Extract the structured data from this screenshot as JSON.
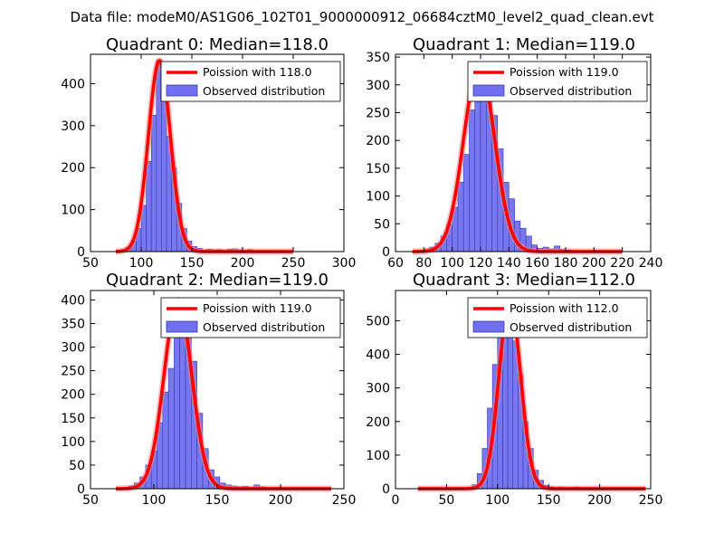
{
  "figure": {
    "suptitle": "Data file: modeM0/AS1G06_102T01_9000000912_06684cztM0_level2_quad_clean.evt"
  },
  "colors": {
    "bar_fill": "#7070f0",
    "bar_edge": "#3a3aa8",
    "curve": "#ff0000",
    "curve_glow": "#f08080"
  },
  "chart_data": [
    {
      "type": "bar",
      "title": "Quadrant 0: Median=118.0",
      "median": 118.0,
      "xlim": [
        50,
        300
      ],
      "ylim": [
        0,
        470
      ],
      "xticks": [
        50,
        100,
        150,
        200,
        250,
        300
      ],
      "yticks": [
        0,
        100,
        200,
        300,
        400
      ],
      "bin_width": 5,
      "bins": [
        {
          "x": 75,
          "h": 1
        },
        {
          "x": 80,
          "h": 4
        },
        {
          "x": 85,
          "h": 10
        },
        {
          "x": 90,
          "h": 25
        },
        {
          "x": 95,
          "h": 55
        },
        {
          "x": 100,
          "h": 110
        },
        {
          "x": 105,
          "h": 215
        },
        {
          "x": 110,
          "h": 325
        },
        {
          "x": 115,
          "h": 455
        },
        {
          "x": 120,
          "h": 365
        },
        {
          "x": 125,
          "h": 275
        },
        {
          "x": 130,
          "h": 200
        },
        {
          "x": 135,
          "h": 115
        },
        {
          "x": 140,
          "h": 55
        },
        {
          "x": 145,
          "h": 25
        },
        {
          "x": 150,
          "h": 12
        },
        {
          "x": 155,
          "h": 8
        },
        {
          "x": 160,
          "h": 4
        },
        {
          "x": 165,
          "h": 6
        },
        {
          "x": 170,
          "h": 4
        },
        {
          "x": 175,
          "h": 5
        },
        {
          "x": 180,
          "h": 3
        },
        {
          "x": 185,
          "h": 6
        },
        {
          "x": 190,
          "h": 7
        },
        {
          "x": 195,
          "h": 4
        },
        {
          "x": 200,
          "h": 2
        },
        {
          "x": 205,
          "h": 5
        },
        {
          "x": 210,
          "h": 2
        },
        {
          "x": 215,
          "h": 2
        },
        {
          "x": 220,
          "h": 1
        },
        {
          "x": 225,
          "h": 1
        },
        {
          "x": 230,
          "h": 1
        },
        {
          "x": 235,
          "h": 1
        },
        {
          "x": 240,
          "h": 1
        }
      ],
      "curve": {
        "peak": 455,
        "range": [
          75,
          250
        ]
      },
      "legend": [
        "Poission with 118.0",
        "Observed distribution"
      ]
    },
    {
      "type": "bar",
      "title": "Quadrant 1: Median=119.0",
      "median": 119.0,
      "xlim": [
        60,
        240
      ],
      "ylim": [
        0,
        355
      ],
      "xticks": [
        60,
        80,
        100,
        120,
        140,
        160,
        180,
        200,
        220,
        240
      ],
      "yticks": [
        0,
        50,
        100,
        150,
        200,
        250,
        300,
        350
      ],
      "bin_width": 4,
      "bins": [
        {
          "x": 72,
          "h": 1
        },
        {
          "x": 76,
          "h": 2
        },
        {
          "x": 80,
          "h": 4
        },
        {
          "x": 84,
          "h": 8
        },
        {
          "x": 88,
          "h": 15
        },
        {
          "x": 92,
          "h": 28
        },
        {
          "x": 96,
          "h": 48
        },
        {
          "x": 100,
          "h": 80
        },
        {
          "x": 104,
          "h": 125
        },
        {
          "x": 108,
          "h": 175
        },
        {
          "x": 112,
          "h": 255
        },
        {
          "x": 116,
          "h": 290
        },
        {
          "x": 120,
          "h": 330
        },
        {
          "x": 124,
          "h": 305
        },
        {
          "x": 128,
          "h": 245
        },
        {
          "x": 132,
          "h": 185
        },
        {
          "x": 136,
          "h": 125
        },
        {
          "x": 140,
          "h": 95
        },
        {
          "x": 144,
          "h": 55
        },
        {
          "x": 148,
          "h": 42
        },
        {
          "x": 152,
          "h": 28
        },
        {
          "x": 156,
          "h": 12
        },
        {
          "x": 160,
          "h": 6
        },
        {
          "x": 164,
          "h": 8
        },
        {
          "x": 168,
          "h": 5
        },
        {
          "x": 172,
          "h": 10
        },
        {
          "x": 176,
          "h": 4
        },
        {
          "x": 180,
          "h": 3
        },
        {
          "x": 184,
          "h": 2
        },
        {
          "x": 188,
          "h": 1
        },
        {
          "x": 192,
          "h": 1
        },
        {
          "x": 196,
          "h": 1
        },
        {
          "x": 200,
          "h": 1
        }
      ],
      "curve": {
        "peak": 335,
        "range": [
          72,
          220
        ]
      },
      "legend": [
        "Poission with 119.0",
        "Observed distribution"
      ]
    },
    {
      "type": "bar",
      "title": "Quadrant 2: Median=119.0",
      "median": 119.0,
      "xlim": [
        50,
        250
      ],
      "ylim": [
        0,
        420
      ],
      "xticks": [
        50,
        100,
        150,
        200,
        250
      ],
      "yticks": [
        0,
        50,
        100,
        150,
        200,
        250,
        300,
        350,
        400
      ],
      "bin_width": 4.5,
      "bins": [
        {
          "x": 80,
          "h": 6
        },
        {
          "x": 84.5,
          "h": 12
        },
        {
          "x": 89,
          "h": 25
        },
        {
          "x": 93.5,
          "h": 50
        },
        {
          "x": 98,
          "h": 80
        },
        {
          "x": 102.5,
          "h": 140
        },
        {
          "x": 107,
          "h": 205
        },
        {
          "x": 111.5,
          "h": 255
        },
        {
          "x": 116,
          "h": 370
        },
        {
          "x": 120.5,
          "h": 400
        },
        {
          "x": 125,
          "h": 340
        },
        {
          "x": 129.5,
          "h": 270
        },
        {
          "x": 134,
          "h": 160
        },
        {
          "x": 138.5,
          "h": 85
        },
        {
          "x": 143,
          "h": 40
        },
        {
          "x": 147.5,
          "h": 25
        },
        {
          "x": 152,
          "h": 12
        },
        {
          "x": 156.5,
          "h": 8
        },
        {
          "x": 161,
          "h": 6
        },
        {
          "x": 165.5,
          "h": 4
        },
        {
          "x": 170,
          "h": 5
        },
        {
          "x": 174.5,
          "h": 3
        },
        {
          "x": 179,
          "h": 8
        },
        {
          "x": 183.5,
          "h": 4
        },
        {
          "x": 188,
          "h": 3
        },
        {
          "x": 192.5,
          "h": 2
        },
        {
          "x": 197,
          "h": 3
        },
        {
          "x": 201.5,
          "h": 2
        },
        {
          "x": 206,
          "h": 1
        },
        {
          "x": 210.5,
          "h": 1
        },
        {
          "x": 215,
          "h": 1
        }
      ],
      "curve": {
        "peak": 400,
        "range": [
          70,
          240
        ]
      },
      "legend": [
        "Poission with 119.0",
        "Observed distribution"
      ]
    },
    {
      "type": "bar",
      "title": "Quadrant 3: Median=112.0",
      "median": 112.0,
      "xlim": [
        0,
        250
      ],
      "ylim": [
        0,
        590
      ],
      "xticks": [
        0,
        50,
        100,
        150,
        200,
        250
      ],
      "yticks": [
        0,
        100,
        200,
        300,
        400,
        500
      ],
      "bin_width": 5,
      "bins": [
        {
          "x": 70,
          "h": 3
        },
        {
          "x": 75,
          "h": 12
        },
        {
          "x": 80,
          "h": 45
        },
        {
          "x": 85,
          "h": 120
        },
        {
          "x": 90,
          "h": 240
        },
        {
          "x": 95,
          "h": 370
        },
        {
          "x": 100,
          "h": 480
        },
        {
          "x": 105,
          "h": 545
        },
        {
          "x": 110,
          "h": 535
        },
        {
          "x": 115,
          "h": 440
        },
        {
          "x": 120,
          "h": 340
        },
        {
          "x": 125,
          "h": 200
        },
        {
          "x": 130,
          "h": 120
        },
        {
          "x": 135,
          "h": 55
        },
        {
          "x": 140,
          "h": 25
        },
        {
          "x": 145,
          "h": 10
        },
        {
          "x": 150,
          "h": 6
        },
        {
          "x": 155,
          "h": 4
        },
        {
          "x": 160,
          "h": 5
        },
        {
          "x": 165,
          "h": 3
        },
        {
          "x": 170,
          "h": 4
        },
        {
          "x": 175,
          "h": 5
        },
        {
          "x": 180,
          "h": 2
        },
        {
          "x": 185,
          "h": 2
        },
        {
          "x": 190,
          "h": 1
        },
        {
          "x": 195,
          "h": 1
        },
        {
          "x": 200,
          "h": 1
        }
      ],
      "curve": {
        "peak": 560,
        "range": [
          22,
          245
        ]
      },
      "legend": [
        "Poission with 112.0",
        "Observed distribution"
      ]
    }
  ]
}
